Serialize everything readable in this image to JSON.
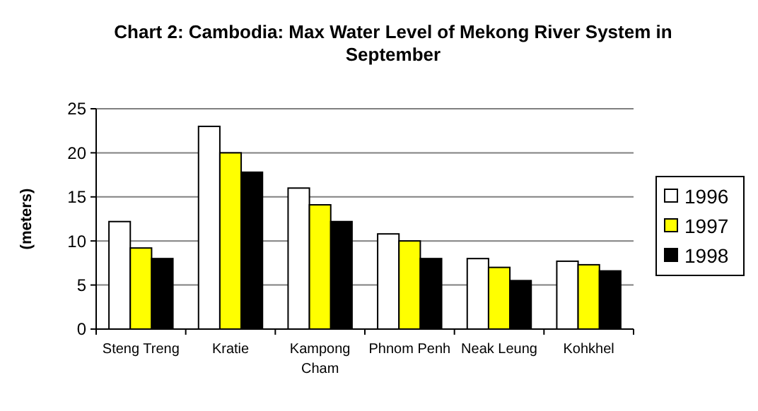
{
  "chart_data": {
    "type": "bar",
    "title": "Chart 2: Cambodia: Max Water Level of Mekong River System in September",
    "ylabel": "(meters)",
    "categories": [
      "Steng Treng",
      "Kratie",
      "Kampong Cham",
      "Phnom Penh",
      "Neak Leung",
      "Kohkhel"
    ],
    "series": [
      {
        "name": "1996",
        "color": "#ffffff",
        "values": [
          12.2,
          23,
          16,
          10.8,
          8,
          7.7
        ]
      },
      {
        "name": "1997",
        "color": "#ffff00",
        "values": [
          9.2,
          20,
          14.1,
          10,
          7,
          7.3
        ]
      },
      {
        "name": "1998",
        "color": "#000000",
        "values": [
          8,
          17.8,
          12.2,
          8,
          5.5,
          6.6
        ]
      }
    ],
    "ylim": [
      0,
      25
    ],
    "yticks": [
      0,
      5,
      10,
      15,
      20,
      25
    ],
    "grid": "y",
    "legend": "right"
  }
}
